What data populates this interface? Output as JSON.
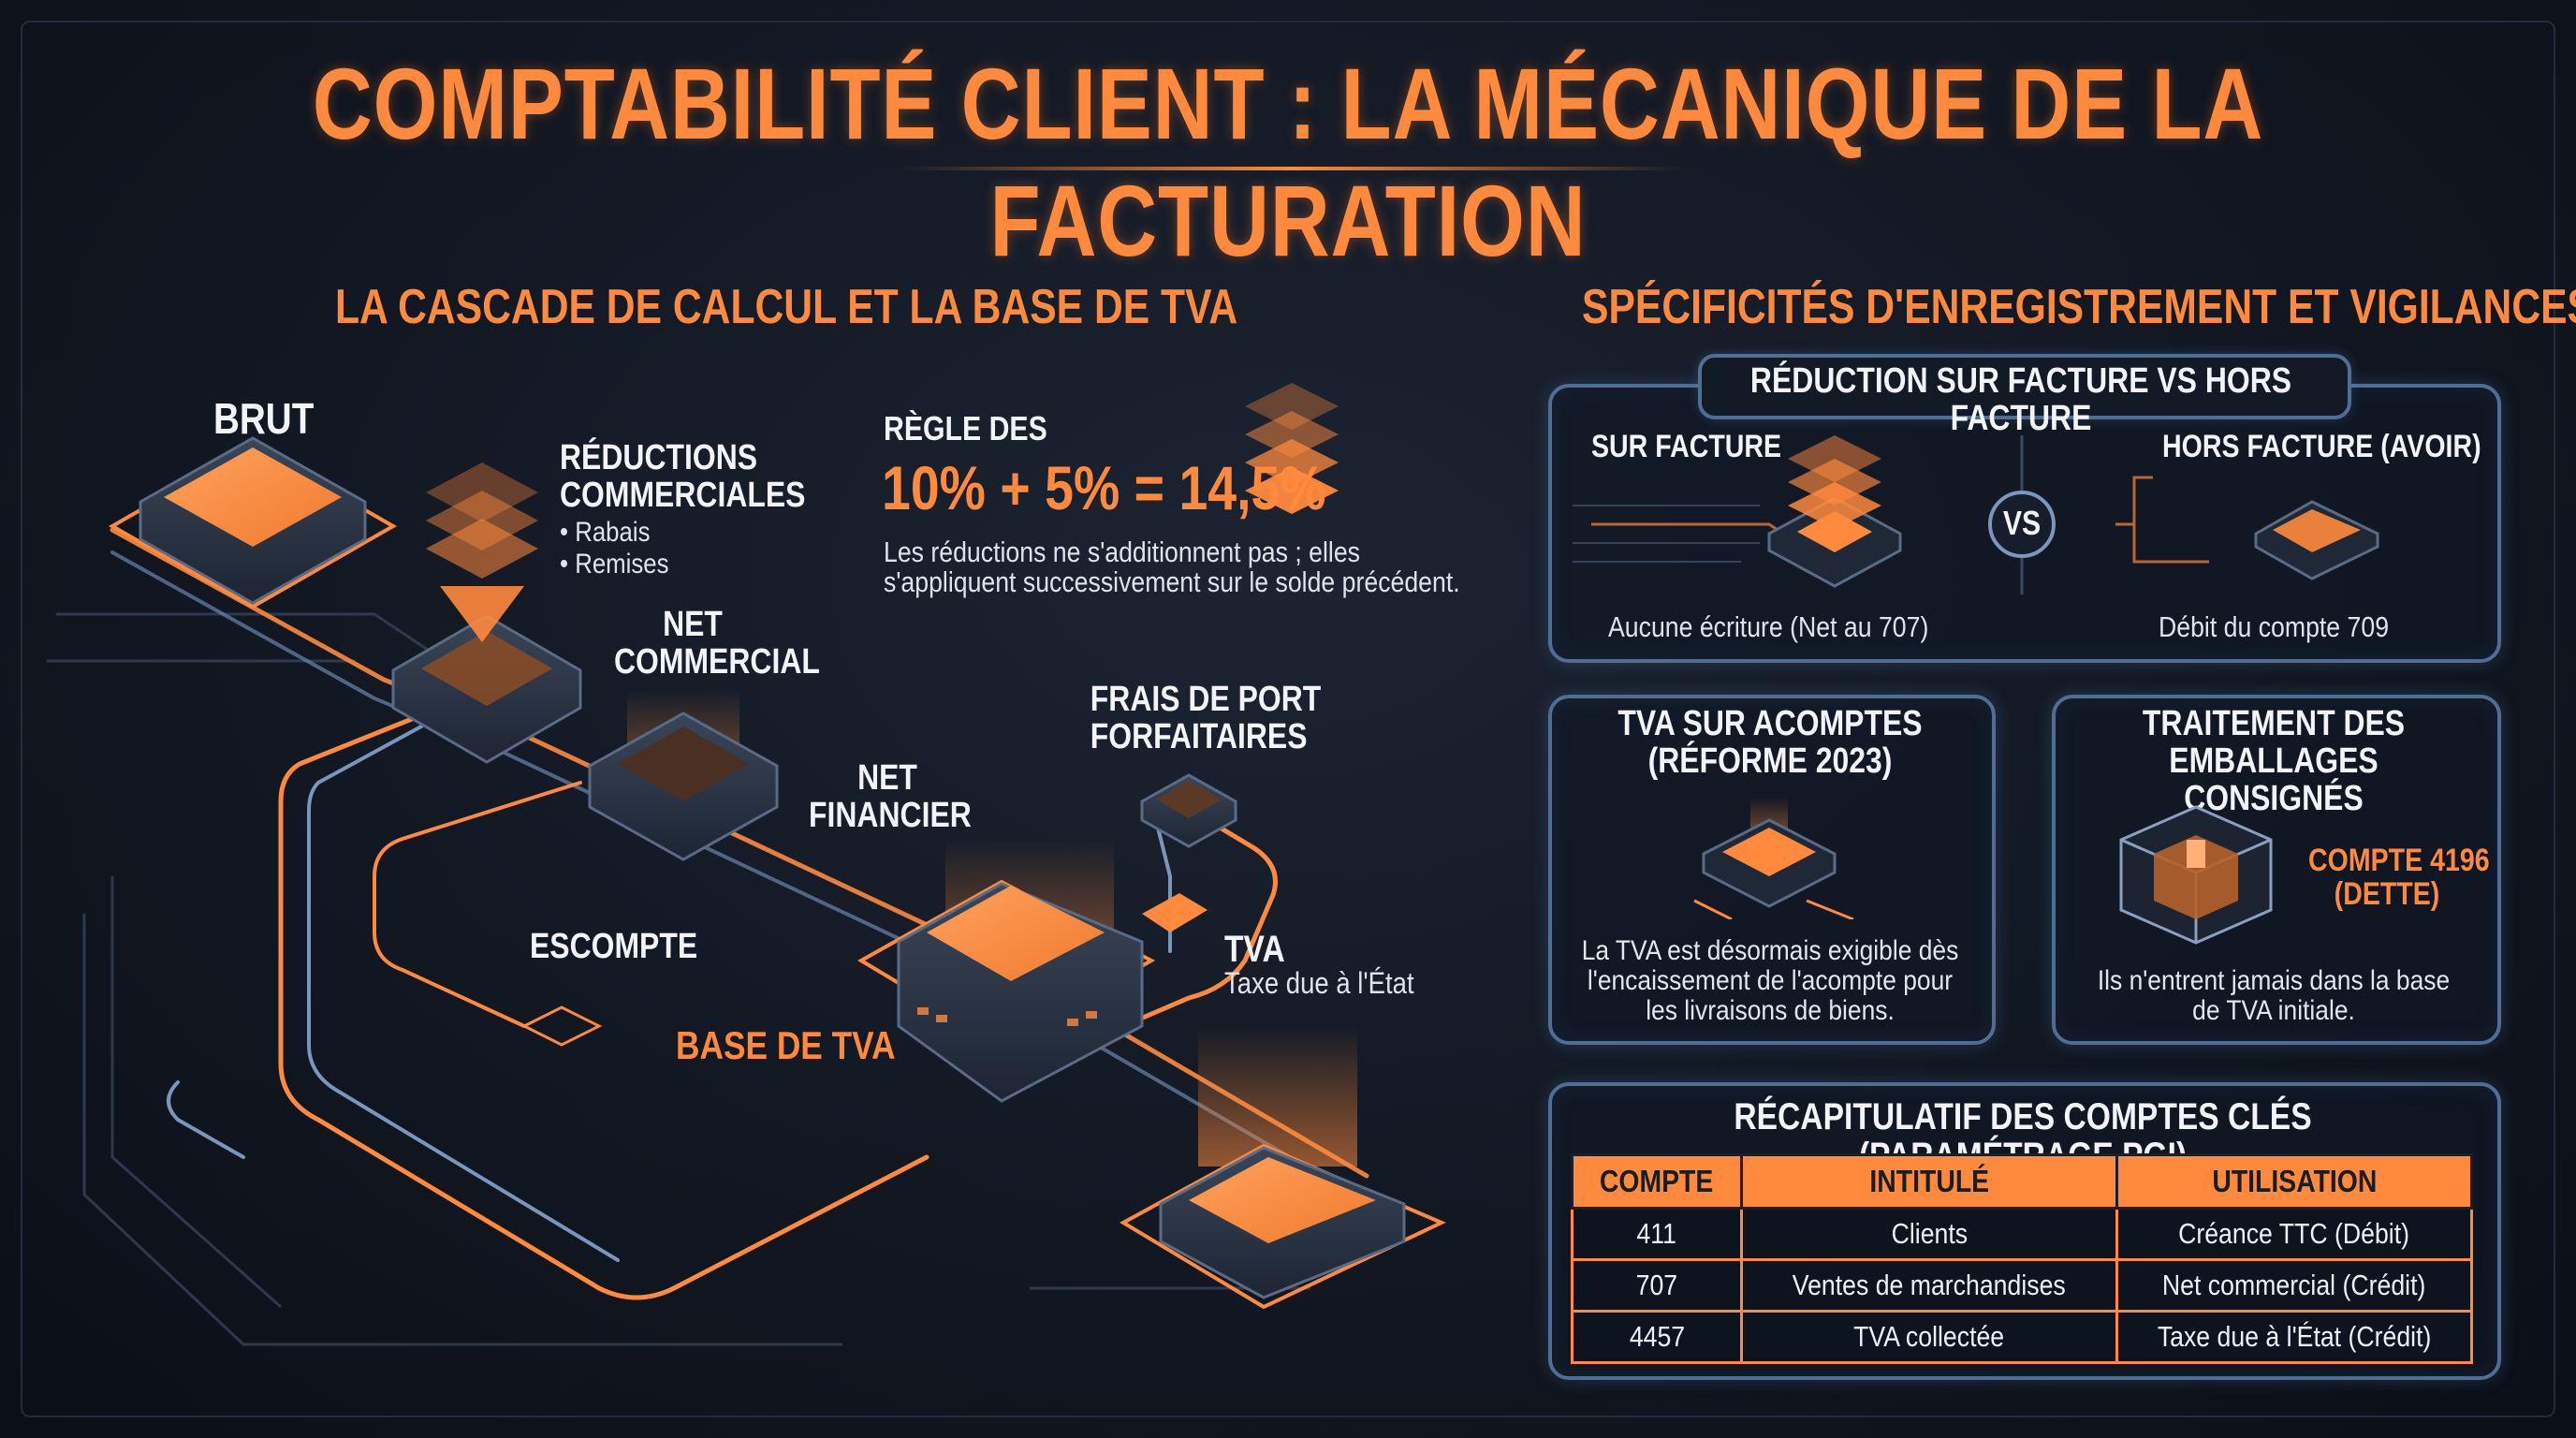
{
  "title": "COMPTABILITÉ CLIENT : LA MÉCANIQUE DE LA FACTURATION",
  "left": {
    "section_title": "LA CASCADE DE CALCUL ET LA BASE DE TVA",
    "brut": "BRUT",
    "reductions": {
      "title_line1": "RÉDUCTIONS",
      "title_line2": "COMMERCIALES",
      "item1": "• Rabais",
      "item2": "• Remises"
    },
    "net_commercial": {
      "line1": "NET",
      "line2": "COMMERCIAL"
    },
    "net_financier": {
      "line1": "NET",
      "line2": "FINANCIER"
    },
    "escompte": "ESCOMPTE",
    "frais_de_port": {
      "line1": "FRAIS DE PORT",
      "line2": "FORFAITAIRES"
    },
    "tva": {
      "title": "TVA",
      "subtitle": "Taxe due à l'État"
    },
    "base_tva": "BASE DE TVA",
    "rule": {
      "label": "RÈGLE DES",
      "formula": "10% + 5% = 14,5%",
      "text_line1": "Les réductions ne s'additionnent pas ; elles",
      "text_line2": "s'appliquent successivement sur le solde précédent."
    }
  },
  "right": {
    "section_title": "SPÉCIFICITÉS D'ENREGISTREMENT ET VIGILANCES",
    "reduction_panel": {
      "title": "RÉDUCTION SUR FACTURE VS HORS FACTURE",
      "left_label": "SUR FACTURE",
      "right_label": "HORS FACTURE (AVOIR)",
      "vs": "VS",
      "left_text": "Aucune écriture (Net au 707)",
      "right_text": "Débit du compte 709"
    },
    "tva_acomptes": {
      "title_line1": "TVA SUR ACOMPTES",
      "title_line2": "(RÉFORME 2023)",
      "text_line1": "La TVA est désormais exigible dès",
      "text_line2": "l'encaissement de l'acompte pour",
      "text_line3": "les livraisons de biens."
    },
    "emballages": {
      "title_line1": "TRAITEMENT DES",
      "title_line2": "EMBALLAGES CONSIGNÉS",
      "account_line1": "COMPTE 4196",
      "account_line2": "(DETTE)",
      "text_line1": "Ils n'entrent jamais dans la base",
      "text_line2": "de TVA initiale."
    },
    "recap": {
      "title": "RÉCAPITULATIF DES COMPTES CLÉS (PARAMÉTRAGE PGI)",
      "headers": [
        "COMPTE",
        "INTITULÉ",
        "UTILISATION"
      ],
      "rows": [
        [
          "411",
          "Clients",
          "Créance TTC (Débit)"
        ],
        [
          "707",
          "Ventes de marchandises",
          "Net commercial (Crédit)"
        ],
        [
          "4457",
          "TVA collectée",
          "Taxe due à l'État (Crédit)"
        ]
      ]
    }
  },
  "colors": {
    "accent": "#ff8a3d",
    "panel_border": "#4f6e95",
    "background": "#121822"
  }
}
